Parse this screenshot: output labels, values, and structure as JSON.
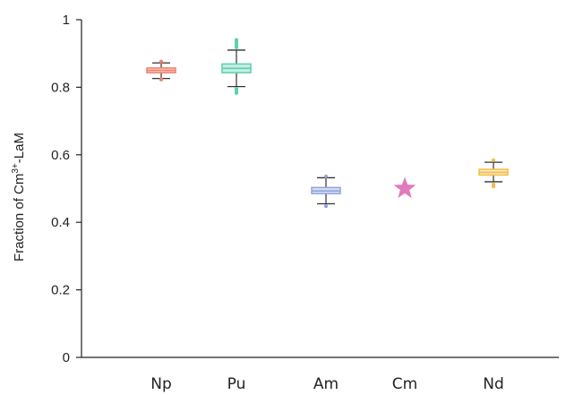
{
  "chart_data": {
    "type": "box",
    "ylabel_main": "Fraction of Cm",
    "ylabel_sup": "3+",
    "ylabel_tail": "-LaM",
    "ylim": [
      0,
      1
    ],
    "yticks": [
      "0",
      "0.2",
      "0.4",
      "0.6",
      "0.8",
      "1"
    ],
    "ytick_values": [
      0,
      0.2,
      0.4,
      0.6,
      0.8,
      1
    ],
    "grid": false,
    "categories": [
      "Np",
      "Pu",
      "Am",
      "Cm",
      "Nd"
    ],
    "boxes": [
      {
        "name": "Np",
        "color": "#f07f6b",
        "whisker_low": 0.826,
        "q1": 0.843,
        "median": 0.85,
        "q3": 0.857,
        "whisker_high": 0.872,
        "outliers": [
          0.876,
          0.823
        ]
      },
      {
        "name": "Pu",
        "color": "#5dcfae",
        "whisker_low": 0.802,
        "q1": 0.843,
        "median": 0.856,
        "q3": 0.869,
        "whisker_high": 0.91,
        "outliers": [
          0.918,
          0.924,
          0.93,
          0.936,
          0.94,
          0.795,
          0.789,
          0.783
        ]
      },
      {
        "name": "Am",
        "color": "#8ea4dd",
        "whisker_low": 0.455,
        "q1": 0.485,
        "median": 0.493,
        "q3": 0.503,
        "whisker_high": 0.532,
        "outliers": [
          0.536,
          0.448
        ]
      },
      {
        "name": "Nd",
        "color": "#f2bd47",
        "whisker_low": 0.52,
        "q1": 0.54,
        "median": 0.548,
        "q3": 0.557,
        "whisker_high": 0.578,
        "outliers": [
          0.584,
          0.512,
          0.506
        ]
      }
    ],
    "markers": [
      {
        "name": "Cm",
        "shape": "star",
        "color": "#e07abd",
        "value": 0.5
      }
    ]
  }
}
